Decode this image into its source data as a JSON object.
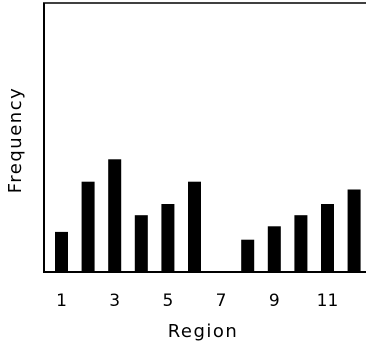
{
  "chart_data": {
    "type": "bar",
    "title": "",
    "xlabel": "Region",
    "ylabel": "Frequency",
    "categories": [
      1,
      2,
      3,
      4,
      5,
      6,
      7,
      8,
      9,
      10,
      11,
      12
    ],
    "x_tick_labels": [
      "1",
      "3",
      "5",
      "7",
      "9",
      "11"
    ],
    "x_tick_values": [
      1,
      3,
      5,
      7,
      9,
      11
    ],
    "values": [
      3.5,
      8,
      10,
      5,
      6,
      8,
      0,
      2.8,
      4,
      5,
      6,
      7.3
    ],
    "ylim": [
      0,
      24
    ],
    "y_ticks_shown": false,
    "grid": false,
    "legend": "none",
    "bar_color": "#000000"
  }
}
